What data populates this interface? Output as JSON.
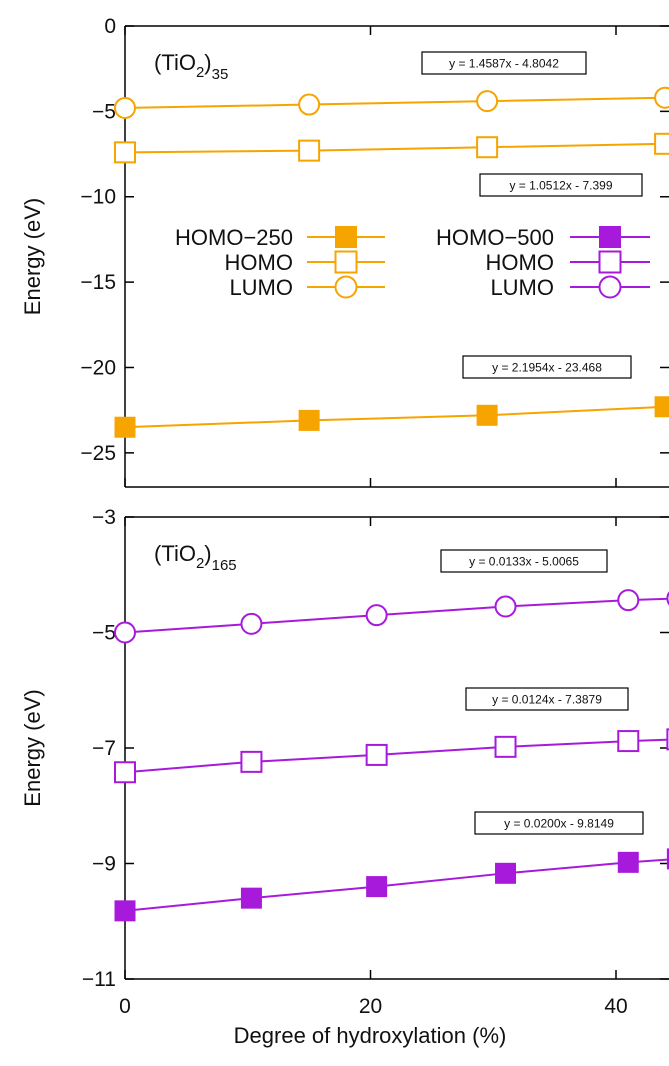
{
  "colors": {
    "orange": "#F5A400",
    "purple": "#A81ADB",
    "axis": "#000000"
  },
  "chart_data": [
    {
      "type": "line",
      "panel_label": {
        "base": "(TiO",
        "sub": "2",
        "close": ")",
        "subscript": "35"
      },
      "ylabel": "Energy (eV)",
      "xlabel": "",
      "xlim": [
        0,
        45
      ],
      "ylim": [
        -27,
        0
      ],
      "yticks": [
        0,
        -5,
        -10,
        -15,
        -20,
        -25
      ],
      "ytick_labels": [
        "0",
        "−5",
        "−10",
        "−15",
        "−20",
        "−25"
      ],
      "series": [
        {
          "name": "HOMO−250",
          "marker": "filled-square",
          "color": "#F5A400",
          "x": [
            0,
            15,
            29.5,
            44
          ],
          "y": [
            -23.5,
            -23.1,
            -22.8,
            -22.3
          ]
        },
        {
          "name": "HOMO",
          "marker": "open-square",
          "color": "#F5A400",
          "x": [
            0,
            15,
            29.5,
            44
          ],
          "y": [
            -7.4,
            -7.3,
            -7.1,
            -6.9
          ]
        },
        {
          "name": "LUMO",
          "marker": "open-circle",
          "color": "#F5A400",
          "x": [
            0,
            15,
            29.5,
            44
          ],
          "y": [
            -4.8,
            -4.6,
            -4.4,
            -4.2
          ]
        }
      ],
      "legend": {
        "columns": [
          [
            {
              "label": "HOMO−250",
              "marker": "filled-square",
              "color": "#F5A400"
            },
            {
              "label": "HOMO",
              "marker": "open-square",
              "color": "#F5A400"
            },
            {
              "label": "LUMO",
              "marker": "open-circle",
              "color": "#F5A400"
            }
          ],
          [
            {
              "label": "HOMO−500",
              "marker": "filled-square",
              "color": "#A81ADB"
            },
            {
              "label": "HOMO",
              "marker": "open-square",
              "color": "#A81ADB"
            },
            {
              "label": "LUMO",
              "marker": "open-circle",
              "color": "#A81ADB"
            }
          ]
        ]
      },
      "annotations": [
        "y = 1.4587x - 4.8042",
        "y = 1.0512x - 7.399",
        "y = 2.1954x - 23.468"
      ]
    },
    {
      "type": "line",
      "panel_label": {
        "base": "(TiO",
        "sub": "2",
        "close": ")",
        "subscript": "165"
      },
      "ylabel": "Energy (eV)",
      "xlabel": "Degree of hydroxylation (%)",
      "xlim": [
        0,
        45
      ],
      "ylim": [
        -11,
        -3
      ],
      "xticks": [
        0,
        20,
        40
      ],
      "xtick_labels": [
        "0",
        "20",
        "40"
      ],
      "yticks": [
        -3,
        -5,
        -7,
        -9,
        -11
      ],
      "ytick_labels": [
        "−3",
        "−5",
        "−7",
        "−9",
        "−11"
      ],
      "series": [
        {
          "name": "HOMO−500",
          "marker": "filled-square",
          "color": "#A81ADB",
          "x": [
            0,
            10.3,
            20.5,
            31,
            41,
            45
          ],
          "y": [
            -9.82,
            -9.6,
            -9.4,
            -9.17,
            -8.98,
            -8.92
          ]
        },
        {
          "name": "HOMO",
          "marker": "open-square",
          "color": "#A81ADB",
          "x": [
            0,
            10.3,
            20.5,
            31,
            41,
            45
          ],
          "y": [
            -7.42,
            -7.24,
            -7.12,
            -6.98,
            -6.88,
            -6.85
          ]
        },
        {
          "name": "LUMO",
          "marker": "open-circle",
          "color": "#A81ADB",
          "x": [
            0,
            10.3,
            20.5,
            31,
            41,
            45
          ],
          "y": [
            -5.0,
            -4.85,
            -4.7,
            -4.55,
            -4.44,
            -4.41
          ]
        }
      ],
      "annotations": [
        "y = 0.0133x - 5.0065",
        "y = 0.0124x - 7.3879",
        "y = 0.0200x - 9.8149"
      ]
    }
  ]
}
